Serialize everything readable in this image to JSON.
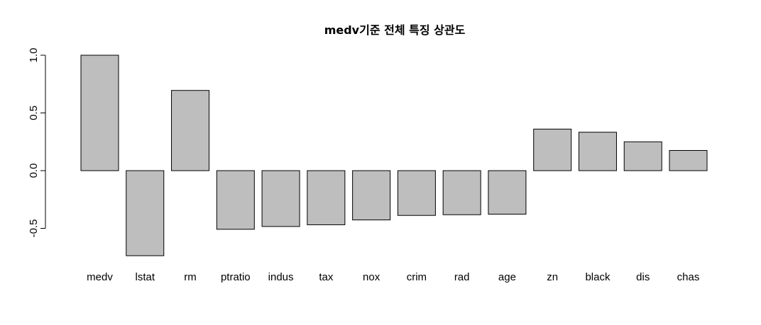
{
  "chart_data": {
    "type": "bar",
    "title": "medv기준 전체 특징 상관도",
    "xlabel": "",
    "ylabel": "",
    "categories": [
      "medv",
      "lstat",
      "rm",
      "ptratio",
      "indus",
      "tax",
      "nox",
      "crim",
      "rad",
      "age",
      "zn",
      "black",
      "dis",
      "chas"
    ],
    "values": [
      1.0,
      -0.737,
      0.695,
      -0.508,
      -0.484,
      -0.469,
      -0.427,
      -0.388,
      -0.382,
      -0.377,
      0.36,
      0.333,
      0.25,
      0.175
    ],
    "ylim": [
      -0.5,
      1.0
    ],
    "yticks": [
      -0.5,
      0.0,
      0.5,
      1.0
    ],
    "ytick_labels": [
      "-0.5",
      "0.0",
      "0.5",
      "1.0"
    ],
    "grid": false,
    "legend": "none",
    "bar_color": "#bebebe"
  }
}
